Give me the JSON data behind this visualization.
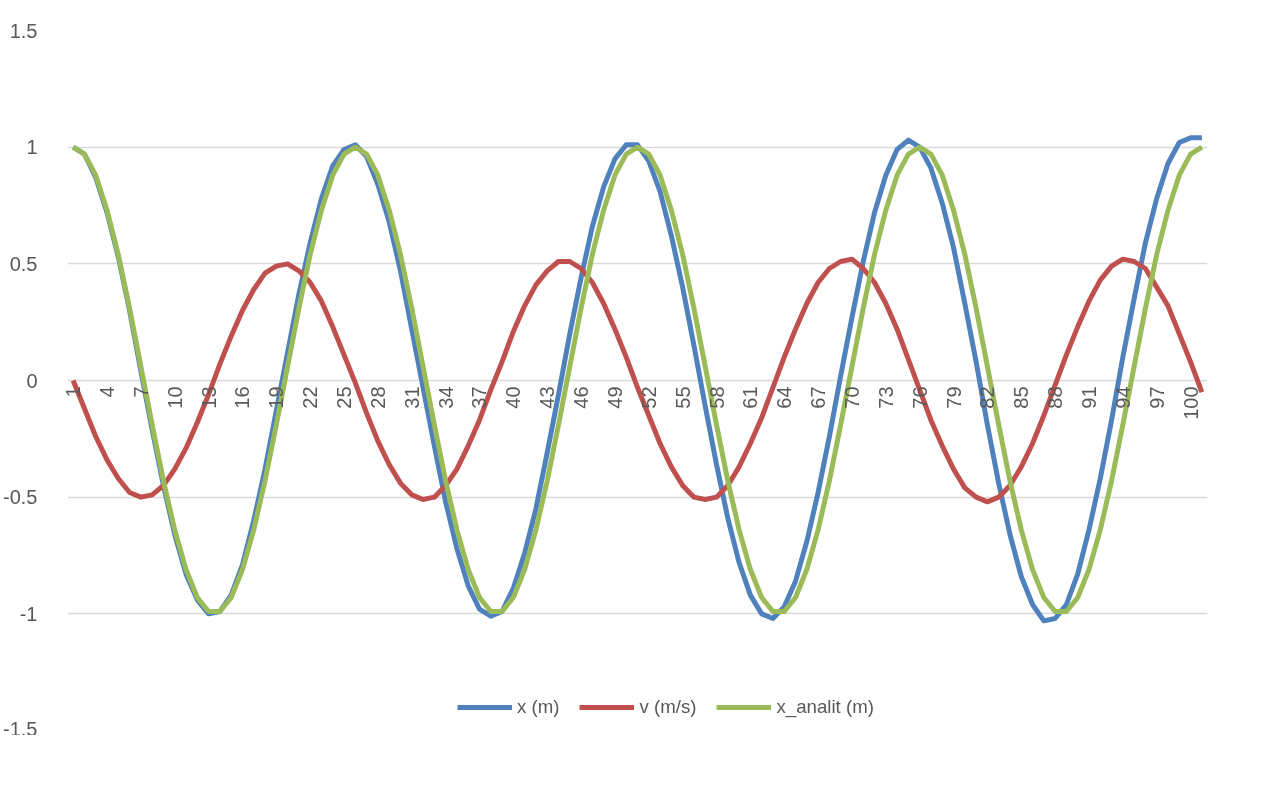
{
  "chart_data": {
    "type": "line",
    "categories": [
      "1",
      null,
      null,
      "4",
      null,
      null,
      "7",
      null,
      null,
      "10",
      null,
      null,
      "13",
      null,
      null,
      "16",
      null,
      null,
      "19",
      null,
      null,
      "22",
      null,
      null,
      "25",
      null,
      null,
      "28",
      null,
      null,
      "31",
      null,
      null,
      "34",
      null,
      null,
      "37",
      null,
      null,
      "40",
      null,
      null,
      "43",
      null,
      null,
      "46",
      null,
      null,
      "49",
      null,
      null,
      "52",
      null,
      null,
      "55",
      null,
      null,
      "58",
      null,
      null,
      "61",
      null,
      null,
      "64",
      null,
      null,
      "67",
      null,
      null,
      "70",
      null,
      null,
      "73",
      null,
      null,
      "76",
      null,
      null,
      "79",
      null,
      null,
      "82",
      null,
      null,
      "85",
      null,
      null,
      "88",
      null,
      null,
      "91",
      null,
      null,
      "94",
      null,
      null,
      "97",
      null,
      null,
      "100",
      null
    ],
    "series": [
      {
        "name": "x (m)",
        "color": "#4f81bd",
        "values": [
          1.0,
          0.97,
          0.87,
          0.72,
          0.53,
          0.3,
          0.04,
          -0.21,
          -0.45,
          -0.66,
          -0.83,
          -0.94,
          -1.0,
          -0.99,
          -0.92,
          -0.79,
          -0.6,
          -0.38,
          -0.13,
          0.12,
          0.37,
          0.59,
          0.78,
          0.92,
          0.99,
          1.01,
          0.96,
          0.84,
          0.68,
          0.47,
          0.22,
          -0.03,
          -0.28,
          -0.52,
          -0.72,
          -0.88,
          -0.98,
          -1.01,
          -0.99,
          -0.89,
          -0.74,
          -0.55,
          -0.31,
          -0.06,
          0.2,
          0.44,
          0.66,
          0.83,
          0.95,
          1.01,
          1.01,
          0.94,
          0.81,
          0.62,
          0.4,
          0.15,
          -0.11,
          -0.36,
          -0.59,
          -0.78,
          -0.92,
          -1.0,
          -1.02,
          -0.97,
          -0.86,
          -0.69,
          -0.48,
          -0.24,
          0.02,
          0.27,
          0.51,
          0.72,
          0.88,
          0.99,
          1.03,
          1.0,
          0.91,
          0.76,
          0.57,
          0.33,
          0.08,
          -0.19,
          -0.44,
          -0.66,
          -0.84,
          -0.96,
          -1.03,
          -1.02,
          -0.96,
          -0.83,
          -0.64,
          -0.42,
          -0.17,
          0.1,
          0.35,
          0.59,
          0.78,
          0.93,
          1.02,
          1.04,
          1.04
        ]
      },
      {
        "name": "v (m/s)",
        "color": "#c0504d",
        "values": [
          0,
          -0.12,
          -0.24,
          -0.34,
          -0.42,
          -0.48,
          -0.5,
          -0.49,
          -0.45,
          -0.38,
          -0.29,
          -0.18,
          -0.06,
          0.07,
          0.19,
          0.3,
          0.39,
          0.46,
          0.49,
          0.5,
          0.47,
          0.42,
          0.34,
          0.23,
          0.11,
          -0.01,
          -0.14,
          -0.26,
          -0.36,
          -0.44,
          -0.49,
          -0.51,
          -0.5,
          -0.45,
          -0.38,
          -0.28,
          -0.17,
          -0.04,
          0.08,
          0.21,
          0.32,
          0.41,
          0.47,
          0.51,
          0.51,
          0.48,
          0.42,
          0.33,
          0.22,
          0.1,
          -0.03,
          -0.15,
          -0.27,
          -0.37,
          -0.45,
          -0.5,
          -0.51,
          -0.5,
          -0.45,
          -0.37,
          -0.27,
          -0.16,
          -0.03,
          0.1,
          0.22,
          0.33,
          0.42,
          0.48,
          0.51,
          0.52,
          0.48,
          0.42,
          0.33,
          0.22,
          0.09,
          -0.04,
          -0.17,
          -0.28,
          -0.38,
          -0.46,
          -0.5,
          -0.52,
          -0.5,
          -0.45,
          -0.37,
          -0.27,
          -0.15,
          -0.02,
          0.11,
          0.23,
          0.34,
          0.43,
          0.49,
          0.52,
          0.51,
          0.48,
          0.4,
          0.32,
          0.2,
          0.08,
          -0.05
        ]
      },
      {
        "name": "x_analit (m)",
        "color": "#9bbb59",
        "values": [
          1,
          0.97,
          0.88,
          0.73,
          0.54,
          0.31,
          0.06,
          -0.19,
          -0.43,
          -0.64,
          -0.81,
          -0.93,
          -0.99,
          -0.99,
          -0.93,
          -0.81,
          -0.64,
          -0.43,
          -0.19,
          0.06,
          0.31,
          0.54,
          0.73,
          0.88,
          0.97,
          1,
          0.97,
          0.88,
          0.73,
          0.54,
          0.31,
          0.06,
          -0.19,
          -0.43,
          -0.64,
          -0.81,
          -0.93,
          -0.99,
          -0.99,
          -0.93,
          -0.81,
          -0.64,
          -0.43,
          -0.19,
          0.06,
          0.31,
          0.54,
          0.73,
          0.88,
          0.97,
          1,
          0.97,
          0.88,
          0.73,
          0.54,
          0.31,
          0.06,
          -0.19,
          -0.43,
          -0.64,
          -0.81,
          -0.93,
          -0.99,
          -0.99,
          -0.93,
          -0.81,
          -0.64,
          -0.43,
          -0.19,
          0.06,
          0.31,
          0.54,
          0.73,
          0.88,
          0.97,
          1,
          0.97,
          0.88,
          0.73,
          0.54,
          0.31,
          0.06,
          -0.19,
          -0.43,
          -0.64,
          -0.81,
          -0.93,
          -0.99,
          -0.99,
          -0.93,
          -0.81,
          -0.64,
          -0.43,
          -0.19,
          0.06,
          0.31,
          0.54,
          0.73,
          0.88,
          0.97,
          1
        ]
      }
    ],
    "ylim": [
      -1.5,
      1.5
    ],
    "yticks": [
      1.5,
      1,
      0.5,
      0,
      -0.5,
      -1,
      -1.5
    ],
    "grid": "y",
    "legend": "bottom",
    "marker": "none",
    "line_style": "solid"
  }
}
